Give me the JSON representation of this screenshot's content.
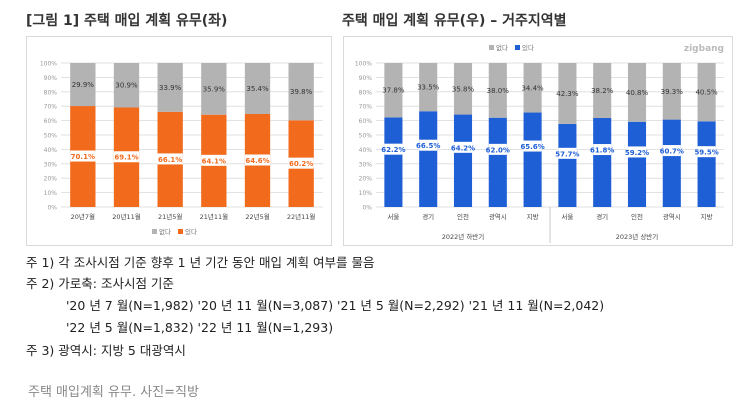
{
  "titles": {
    "left": "[그림 1] 주택 매입 계획 유무(좌)",
    "right": "주택 매입 계획 유무(우) – 거주지역별"
  },
  "colors": {
    "no_plan": "#b3b3b3",
    "plan_left": "#f26b1d",
    "plan_right": "#1f5fd6",
    "grid": "#d9d9d9",
    "label_light": "#ffffff",
    "label_dark": "#333333"
  },
  "chart_data": [
    {
      "type": "bar",
      "stacked": true,
      "title": "",
      "categories": [
        "20년7월",
        "20년11월",
        "21년5월",
        "21년11월",
        "22년5월",
        "22년11월"
      ],
      "series": [
        {
          "name": "있다",
          "values": [
            70.1,
            69.1,
            66.1,
            64.1,
            64.6,
            60.2
          ],
          "labels": [
            "70.1%",
            "69.1%",
            "66.1%",
            "64.1%",
            "64.6%",
            "60.2%"
          ]
        },
        {
          "name": "없다",
          "values": [
            29.9,
            30.9,
            33.9,
            35.9,
            35.4,
            39.8
          ],
          "labels": [
            "29.9%",
            "30.9%",
            "33.9%",
            "35.9%",
            "35.4%",
            "39.8%"
          ]
        }
      ],
      "ylim": [
        0,
        100
      ],
      "yticks": [
        "0%",
        "10%",
        "20%",
        "30%",
        "40%",
        "50%",
        "60%",
        "70%",
        "80%",
        "90%",
        "100%"
      ],
      "grid": true,
      "legend_position": "bottom",
      "legend": [
        "없다",
        "있다"
      ]
    },
    {
      "type": "bar",
      "stacked": true,
      "title": "",
      "categories": [
        "서울",
        "경기",
        "인천",
        "광역시",
        "지방",
        "서울",
        "경기",
        "인천",
        "광역시",
        "지방"
      ],
      "groups": [
        "2022년 하반기",
        "2023년 상반기"
      ],
      "series": [
        {
          "name": "있다",
          "values": [
            62.2,
            66.5,
            64.2,
            62.0,
            65.6,
            57.7,
            61.8,
            59.2,
            60.7,
            59.5
          ],
          "labels": [
            "62.2%",
            "66.5%",
            "64.2%",
            "62.0%",
            "65.6%",
            "57.7%",
            "61.8%",
            "59.2%",
            "60.7%",
            "59.5%"
          ]
        },
        {
          "name": "없다",
          "values": [
            37.8,
            33.5,
            35.8,
            38.0,
            34.4,
            42.3,
            38.2,
            40.8,
            39.3,
            40.5
          ],
          "labels": [
            "37.8%",
            "33.5%",
            "35.8%",
            "38.0%",
            "34.4%",
            "42.3%",
            "38.2%",
            "40.8%",
            "39.3%",
            "40.5%"
          ]
        }
      ],
      "ylim": [
        0,
        100
      ],
      "yticks": [
        "0%",
        "10%",
        "20%",
        "30%",
        "40%",
        "50%",
        "60%",
        "70%",
        "80%",
        "90%",
        "100%"
      ],
      "grid": true,
      "legend_position": "top",
      "legend": [
        "없다",
        "있다"
      ],
      "watermark": "zigbang"
    }
  ],
  "notes": [
    "주 1) 각 조사시점 기준 향후 1 년 기간 동안 매입 계획 여부를 물음",
    "주 2) 가로축: 조사시점 기준",
    "'20 년 7 월(N=1,982) '20 년 11 월(N=3,087) '21 년 5 월(N=2,292) '21 년 11 월(N=2,042)",
    "'22 년 5 월(N=1,832) '22 년 11 월(N=1,293)",
    "주 3) 광역시: 지방 5 대광역시"
  ],
  "caption": "주택 매입계획 유무. 사진=직방"
}
